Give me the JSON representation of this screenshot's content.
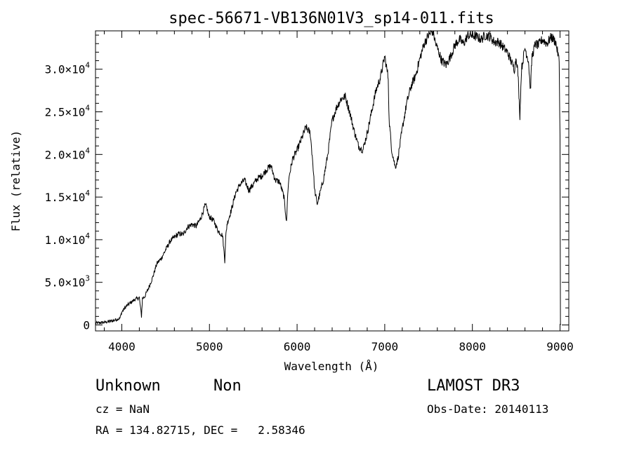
{
  "chart_data": {
    "type": "line",
    "title": "spec-56671-VB136N01V3_sp14-011.fits",
    "xlabel": "Wavelength (Å)",
    "ylabel": "Flux (relative)",
    "xlim": [
      3700,
      9100
    ],
    "ylim": [
      -700,
      34500
    ],
    "x_ticks": [
      4000,
      5000,
      6000,
      7000,
      8000,
      9000
    ],
    "x_tick_labels": [
      "4000",
      "5000",
      "6000",
      "7000",
      "8000",
      "9000"
    ],
    "y_ticks": [
      {
        "value": 0,
        "mantissa": "0",
        "exponent": ""
      },
      {
        "value": 5000,
        "mantissa": "5.0×10",
        "exponent": "3"
      },
      {
        "value": 10000,
        "mantissa": "1.0×10",
        "exponent": "4"
      },
      {
        "value": 15000,
        "mantissa": "1.5×10",
        "exponent": "4"
      },
      {
        "value": 20000,
        "mantissa": "2.0×10",
        "exponent": "4"
      },
      {
        "value": 25000,
        "mantissa": "2.5×10",
        "exponent": "4"
      },
      {
        "value": 30000,
        "mantissa": "3.0×10",
        "exponent": "4"
      }
    ],
    "series": [
      {
        "name": "spectrum",
        "x": [
          3700,
          3800,
          3900,
          3980,
          4000,
          4050,
          4100,
          4150,
          4200,
          4225,
          4235,
          4260,
          4300,
          4350,
          4400,
          4450,
          4500,
          4550,
          4600,
          4650,
          4700,
          4750,
          4800,
          4850,
          4900,
          4950,
          4970,
          4990,
          5050,
          5100,
          5150,
          5175,
          5185,
          5200,
          5250,
          5300,
          5350,
          5400,
          5450,
          5500,
          5550,
          5600,
          5650,
          5700,
          5750,
          5800,
          5850,
          5880,
          5893,
          5910,
          5950,
          6000,
          6050,
          6100,
          6150,
          6180,
          6200,
          6230,
          6250,
          6300,
          6350,
          6400,
          6450,
          6500,
          6550,
          6600,
          6650,
          6700,
          6750,
          6800,
          6850,
          6900,
          6950,
          7000,
          7040,
          7050,
          7080,
          7120,
          7150,
          7200,
          7250,
          7300,
          7350,
          7400,
          7450,
          7500,
          7550,
          7580,
          7600,
          7650,
          7700,
          7750,
          7800,
          7850,
          7900,
          7950,
          8000,
          8050,
          8100,
          8150,
          8200,
          8250,
          8300,
          8400,
          8480,
          8500,
          8520,
          8542,
          8560,
          8600,
          8640,
          8662,
          8680,
          8720,
          8750,
          8800,
          8850,
          8900,
          8950,
          8990,
          9000,
          9005
        ],
        "y": [
          200,
          300,
          500,
          800,
          1500,
          2200,
          2600,
          3000,
          3200,
          1000,
          3100,
          3300,
          4200,
          5500,
          7200,
          7800,
          8800,
          9800,
          10300,
          10700,
          10600,
          11500,
          11800,
          11600,
          12500,
          14000,
          13800,
          12800,
          12200,
          11000,
          10500,
          7500,
          10200,
          11800,
          13500,
          15500,
          16500,
          17000,
          15800,
          16500,
          17200,
          17500,
          18200,
          18700,
          17000,
          16800,
          15000,
          12000,
          15500,
          17500,
          19500,
          20500,
          21800,
          23200,
          22500,
          19000,
          15800,
          14200,
          15000,
          17000,
          20000,
          24000,
          25500,
          26500,
          26800,
          25000,
          22800,
          21000,
          20500,
          22500,
          25000,
          27500,
          29000,
          31500,
          29000,
          24000,
          20500,
          18500,
          19500,
          23000,
          26000,
          28000,
          29200,
          31200,
          33000,
          34000,
          34500,
          33000,
          32500,
          31000,
          30500,
          31500,
          32800,
          33500,
          33000,
          34000,
          34000,
          33800,
          33500,
          34000,
          33800,
          33200,
          33200,
          32000,
          30000,
          31500,
          29500,
          24500,
          30000,
          32500,
          31000,
          27500,
          31500,
          33000,
          32800,
          33500,
          33000,
          33800,
          33200,
          31000,
          22000,
          0
        ]
      }
    ]
  },
  "annotations": {
    "object_class": "Unknown",
    "subclass": "Non",
    "survey": "LAMOST DR3",
    "redshift": "cz = NaN",
    "obs_date": "Obs-Date: 20140113",
    "coords": "RA = 134.82715, DEC =   2.58346"
  }
}
